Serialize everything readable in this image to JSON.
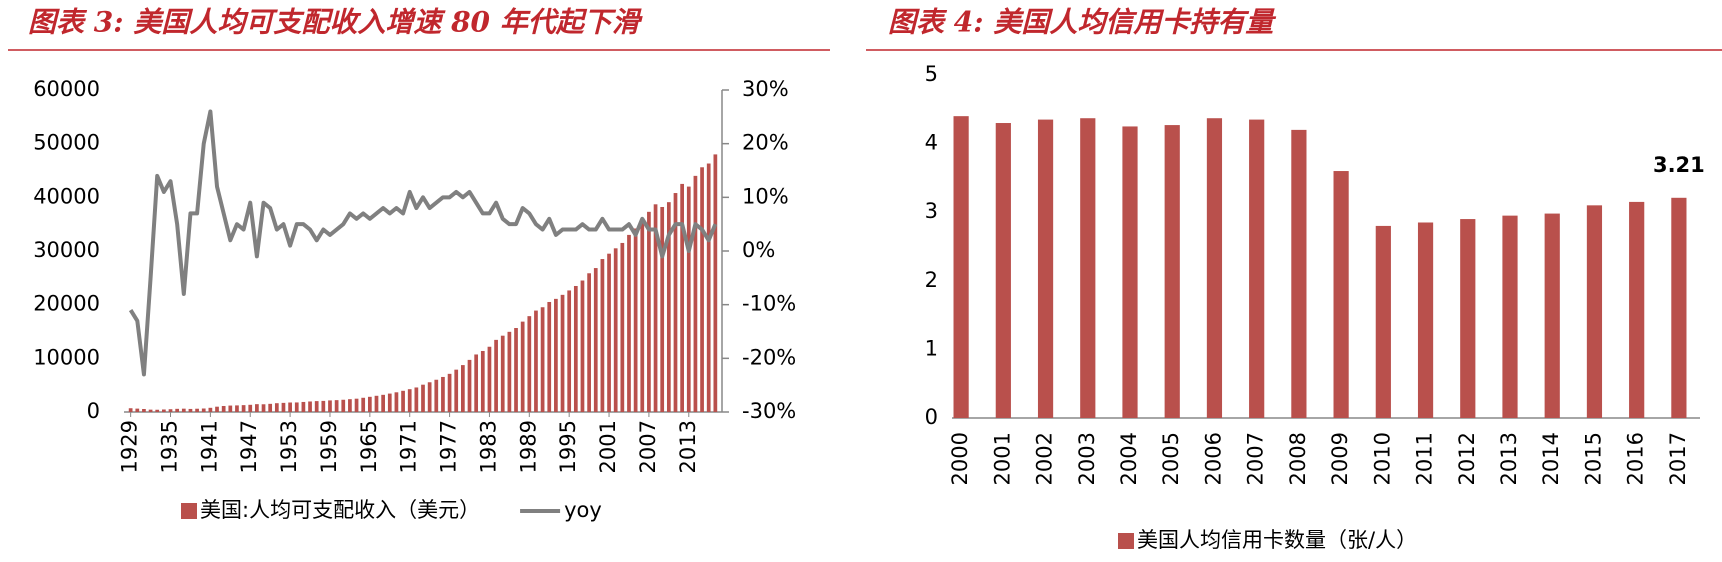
{
  "chart_data": [
    {
      "type": "combo",
      "title": "图表 3:  美国人均可支配收入增速 80 年代起下滑",
      "x": [
        1929,
        1930,
        1931,
        1932,
        1933,
        1934,
        1935,
        1936,
        1937,
        1938,
        1939,
        1940,
        1941,
        1942,
        1943,
        1944,
        1945,
        1946,
        1947,
        1948,
        1949,
        1950,
        1951,
        1952,
        1953,
        1954,
        1955,
        1956,
        1957,
        1958,
        1959,
        1960,
        1961,
        1962,
        1963,
        1964,
        1965,
        1966,
        1967,
        1968,
        1969,
        1970,
        1971,
        1972,
        1973,
        1974,
        1975,
        1976,
        1977,
        1978,
        1979,
        1980,
        1981,
        1982,
        1983,
        1984,
        1985,
        1986,
        1987,
        1988,
        1989,
        1990,
        1991,
        1992,
        1993,
        1994,
        1995,
        1996,
        1997,
        1998,
        1999,
        2000,
        2001,
        2002,
        2003,
        2004,
        2005,
        2006,
        2007,
        2008,
        2009,
        2010,
        2011,
        2012,
        2013,
        2014,
        2015,
        2016,
        2017
      ],
      "xlim": [
        1928,
        2018
      ],
      "xticks": [
        1929,
        1935,
        1941,
        1947,
        1953,
        1959,
        1965,
        1971,
        1977,
        1983,
        1989,
        1995,
        2001,
        2007,
        2013
      ],
      "ylim": [
        0,
        60000
      ],
      "yticks": [
        0,
        10000,
        20000,
        30000,
        40000,
        50000,
        60000
      ],
      "y2lim": [
        -30,
        30
      ],
      "y2ticks": [
        {
          "value": -30,
          "label": "-30%"
        },
        {
          "value": -20,
          "label": "-20%"
        },
        {
          "value": -10,
          "label": "-10%"
        },
        {
          "value": 0,
          "label": "0%"
        },
        {
          "value": 10,
          "label": "10%"
        },
        {
          "value": 20,
          "label": "20%"
        },
        {
          "value": 30,
          "label": "30%"
        }
      ],
      "series": [
        {
          "name": "美国:人均可支配收入（美元）",
          "type": "bar",
          "color": "#b9504c",
          "values": [
            700,
            630,
            560,
            440,
            420,
            470,
            520,
            590,
            620,
            570,
            610,
            650,
            780,
            990,
            1120,
            1200,
            1230,
            1280,
            1340,
            1460,
            1440,
            1520,
            1640,
            1700,
            1770,
            1780,
            1870,
            1960,
            2030,
            2070,
            2160,
            2210,
            2280,
            2390,
            2480,
            2650,
            2830,
            3020,
            3200,
            3430,
            3670,
            3950,
            4250,
            4570,
            5090,
            5540,
            6010,
            6530,
            7110,
            7890,
            8740,
            9710,
            10720,
            11370,
            12160,
            13440,
            14220,
            14940,
            15650,
            16840,
            17860,
            18900,
            19520,
            20500,
            21080,
            21830,
            22650,
            23480,
            24500,
            25850,
            26820,
            28500,
            29500,
            30500,
            31500,
            33000,
            34200,
            35900,
            37300,
            38700,
            38200,
            39100,
            40800,
            42500,
            42000,
            44000,
            45600,
            46300,
            48000
          ]
        },
        {
          "name": "yoy",
          "type": "line",
          "axis": "y2",
          "color": "#808080",
          "values": [
            -11,
            -13,
            -23,
            -5,
            14,
            11,
            13,
            5,
            -8,
            7,
            7,
            20,
            26,
            12,
            7,
            2,
            5,
            4,
            9,
            -1,
            9,
            8,
            4,
            5,
            1,
            5,
            5,
            4,
            2,
            4,
            3,
            4,
            5,
            7,
            6,
            7,
            6,
            7,
            8,
            7,
            8,
            7,
            11,
            8,
            10,
            8,
            9,
            10,
            10,
            11,
            10,
            11,
            9,
            7,
            7,
            9,
            6,
            5,
            5,
            8,
            7,
            5,
            4,
            6,
            3,
            4,
            4,
            4,
            5,
            4,
            4,
            6,
            4,
            4,
            4,
            5,
            3,
            6,
            4,
            4,
            -1,
            3,
            5,
            5,
            0,
            5,
            4,
            2,
            5
          ]
        }
      ]
    },
    {
      "type": "bar",
      "title": "图表 4:  美国人均信用卡持有量",
      "categories": [
        "2000",
        "2001",
        "2002",
        "2003",
        "2004",
        "2005",
        "2006",
        "2007",
        "2008",
        "2009",
        "2010",
        "2011",
        "2012",
        "2013",
        "2014",
        "2015",
        "2016",
        "2017"
      ],
      "series": [
        {
          "name": "美国人均信用卡数量（张/人）",
          "color": "#b9504c",
          "values": [
            4.4,
            4.3,
            4.35,
            4.37,
            4.25,
            4.27,
            4.37,
            4.35,
            4.2,
            3.6,
            2.8,
            2.85,
            2.9,
            2.95,
            2.98,
            3.1,
            3.15,
            3.21
          ],
          "value_labels": [
            null,
            null,
            null,
            null,
            null,
            null,
            null,
            null,
            null,
            null,
            null,
            null,
            null,
            null,
            null,
            null,
            null,
            "3.21"
          ]
        }
      ],
      "ylim": [
        0,
        5
      ],
      "yticks": [
        0,
        1,
        2,
        3,
        4,
        5
      ]
    }
  ]
}
